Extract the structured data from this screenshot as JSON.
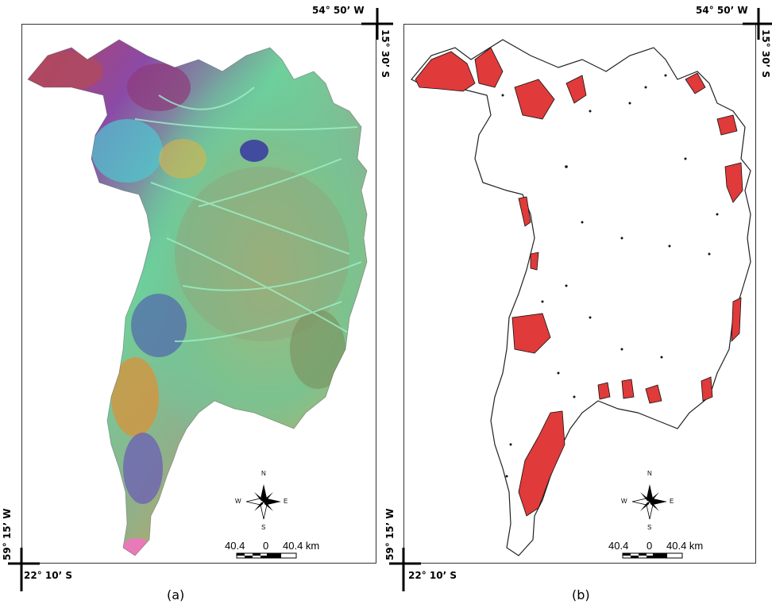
{
  "panels": [
    {
      "id": "a",
      "caption": "(a)",
      "coord_top_right_lon": "54° 50’ W",
      "coord_top_right_lat": "15° 30’ S",
      "coord_bottom_left_lon": "59° 15’ W",
      "coord_bottom_left_lat": "22° 10’ S",
      "scale_left": "40.4",
      "scale_zero": "0",
      "scale_right": "40.4 km",
      "compass": {
        "n": "N",
        "s": "S",
        "e": "E",
        "w": "W"
      }
    },
    {
      "id": "b",
      "caption": "(b)",
      "coord_top_right_lon": "54° 50’ W",
      "coord_top_right_lat": "15° 30’ S",
      "coord_bottom_left_lon": "59° 15’ W",
      "coord_bottom_left_lat": "22° 10’ S",
      "scale_left": "40.4",
      "scale_zero": "0",
      "scale_right": "40.4 km",
      "compass": {
        "n": "N",
        "s": "S",
        "e": "E",
        "w": "W"
      }
    }
  ],
  "colors": {
    "composite_green": "#6fd19a",
    "composite_blue": "#4a55b0",
    "composite_purple": "#8b4aa6",
    "composite_orange": "#d9a24a",
    "composite_red": "#b8405a",
    "composite_pink": "#e87ab8",
    "classified_red": "#e03a3a",
    "outline": "#222222"
  },
  "icons": [
    "compass-rose-icon",
    "scale-bar-icon",
    "corner-crosshair-icon"
  ]
}
